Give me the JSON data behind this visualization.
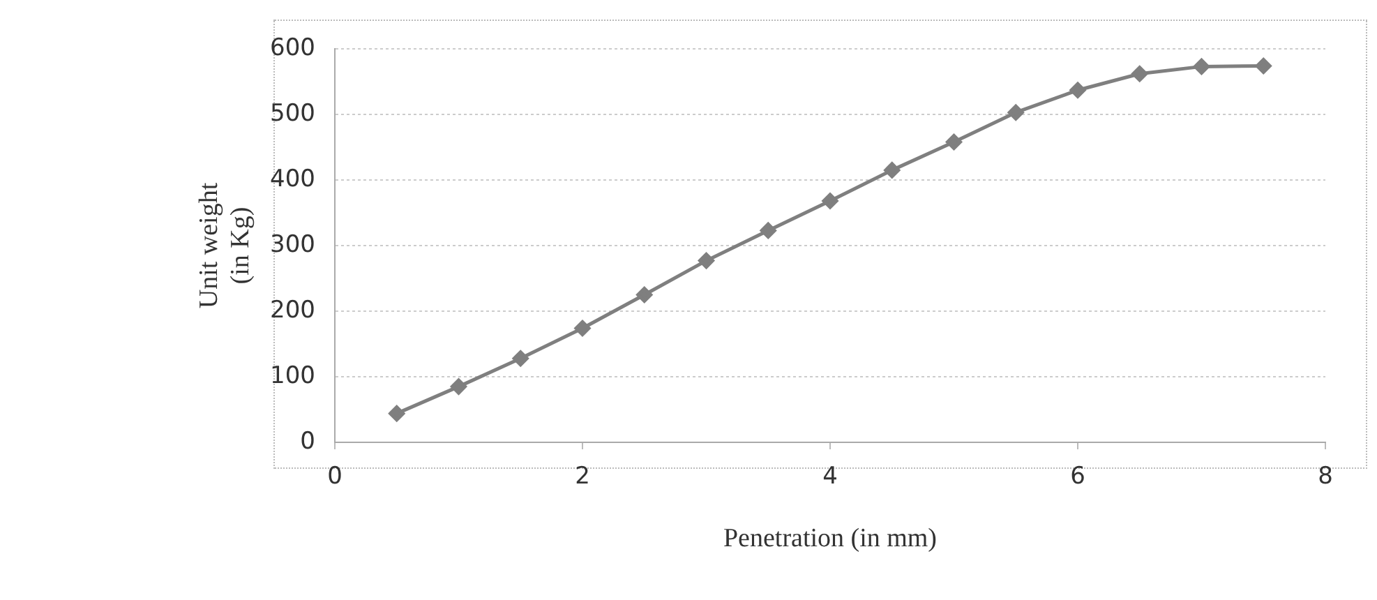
{
  "chart_data": {
    "type": "line",
    "xlabel": "Penetration (in mm)",
    "ylabel": [
      "Unit weight",
      "(in Kg)"
    ],
    "x": [
      0.5,
      1,
      1.5,
      2,
      2.5,
      3,
      3.5,
      4,
      4.5,
      5,
      5.5,
      6,
      6.5,
      7,
      7.5
    ],
    "series": [
      {
        "color": "#7f7f7f",
        "values": [
          44,
          85,
          128,
          174,
          225,
          277,
          323,
          368,
          415,
          458,
          503,
          537,
          562,
          573,
          574
        ]
      }
    ],
    "xlim": [
      0,
      8
    ],
    "xticks": [
      0,
      2,
      4,
      6,
      8
    ],
    "ylim": [
      0,
      600
    ],
    "yticks": [
      0,
      100,
      200,
      300,
      400,
      500,
      600
    ],
    "grid": "y",
    "legend": false,
    "marker": "diamond",
    "line_style": "solid"
  }
}
